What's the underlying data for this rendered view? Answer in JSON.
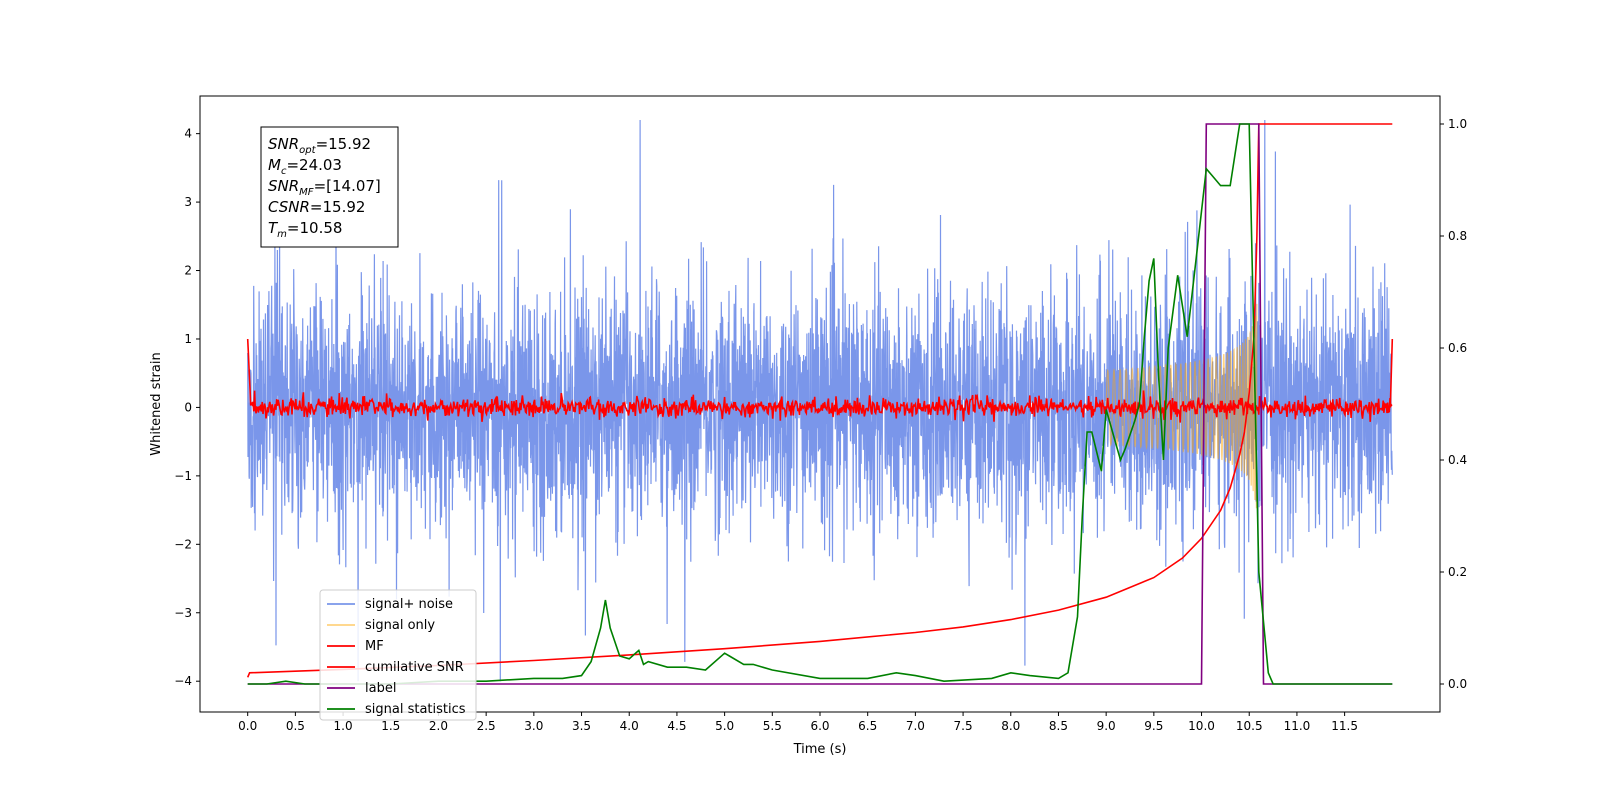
{
  "chart_data": {
    "type": "line",
    "xlabel": "Time (s)",
    "ylabel": "Whitened strain",
    "xlim": [
      -0.5,
      12.5
    ],
    "ylim": [
      -4.45,
      4.55
    ],
    "y2lim": [
      -0.05,
      1.05
    ],
    "x_ticks": [
      0.0,
      0.5,
      1.0,
      1.5,
      2.0,
      2.5,
      3.0,
      3.5,
      4.0,
      4.5,
      5.0,
      5.5,
      6.0,
      6.5,
      7.0,
      7.5,
      8.0,
      8.5,
      9.0,
      9.5,
      10.0,
      10.5,
      11.0,
      11.5
    ],
    "x_tick_labels": [
      "0.0",
      "0.5",
      "1.0",
      "1.5",
      "2.0",
      "2.5",
      "3.0",
      "3.5",
      "4.0",
      "4.5",
      "5.0",
      "5.5",
      "6.0",
      "6.5",
      "7.0",
      "7.5",
      "8.0",
      "8.5",
      "9.0",
      "9.5",
      "10.0",
      "10.5",
      "11.0",
      "11.5"
    ],
    "y_ticks": [
      4,
      3,
      2,
      1,
      0,
      -1,
      -2,
      -3,
      -4
    ],
    "y_tick_labels": [
      "4",
      "3",
      "2",
      "1",
      "0",
      "−1",
      "−2",
      "−3",
      "−4"
    ],
    "y2_ticks": [
      1.0,
      0.8,
      0.6,
      0.4,
      0.2,
      0.0
    ],
    "y2_tick_labels": [
      "1.0",
      "0.8",
      "0.6",
      "0.4",
      "0.2",
      "0.0"
    ],
    "grid": false,
    "legend_position": "lower-left",
    "annotation": {
      "lines": [
        {
          "base": "SNR",
          "sub": "opt",
          "rest": "=15.92"
        },
        {
          "base": "M",
          "sub": "c",
          "rest": "=24.03"
        },
        {
          "base": "SNR",
          "sub": "MF",
          "rest": "=[14.07]"
        },
        {
          "base": "CSNR",
          "sub": "",
          "rest": "=15.92"
        },
        {
          "base": "T",
          "sub": "m",
          "rest": "=10.58"
        }
      ]
    },
    "series": [
      {
        "name": "signal+ noise",
        "color": "#4169e1",
        "opacity": 0.7,
        "axis": "left",
        "description_only": "noise band",
        "x_range": [
          0.0,
          12.0
        ],
        "amplitude": 0.85,
        "seed": 7
      },
      {
        "name": "signal only",
        "color": "#ffa500",
        "opacity": 0.5,
        "axis": "left",
        "x_range": [
          9.0,
          10.6
        ],
        "peak_time": 10.58,
        "peak_amplitude": 1.8
      },
      {
        "name": "MF",
        "color": "#ff0000",
        "axis": "left",
        "x_range": [
          0.0,
          12.0
        ],
        "level": 0.0,
        "jitter": 0.07
      },
      {
        "name": "cumilative SNR",
        "color": "#ff0000",
        "axis": "right",
        "x": [
          0.0,
          0.02,
          1.0,
          2.0,
          3.0,
          4.0,
          5.0,
          6.0,
          7.0,
          7.5,
          8.0,
          8.5,
          9.0,
          9.5,
          9.8,
          10.0,
          10.2,
          10.3,
          10.4,
          10.45,
          10.5,
          10.55,
          10.58,
          10.6,
          12.0
        ],
        "y": [
          0.012,
          0.02,
          0.026,
          0.033,
          0.042,
          0.052,
          0.063,
          0.076,
          0.092,
          0.102,
          0.115,
          0.132,
          0.155,
          0.19,
          0.225,
          0.26,
          0.31,
          0.35,
          0.41,
          0.45,
          0.52,
          0.62,
          0.8,
          1.0,
          1.0
        ]
      },
      {
        "name": "label",
        "color": "#800080",
        "axis": "right",
        "x": [
          0.0,
          10.0,
          10.05,
          10.6,
          10.65,
          12.0
        ],
        "y": [
          0.0,
          0.0,
          1.0,
          1.0,
          0.0,
          0.0
        ]
      },
      {
        "name": "signal statistics",
        "color": "#008000",
        "axis": "right",
        "x": [
          0.0,
          0.2,
          0.4,
          0.6,
          1.0,
          1.5,
          2.0,
          2.5,
          3.0,
          3.3,
          3.5,
          3.6,
          3.7,
          3.75,
          3.8,
          3.9,
          4.0,
          4.1,
          4.15,
          4.2,
          4.4,
          4.6,
          4.8,
          5.0,
          5.05,
          5.2,
          5.3,
          5.5,
          6.0,
          6.5,
          6.8,
          7.0,
          7.3,
          7.8,
          8.0,
          8.2,
          8.5,
          8.6,
          8.7,
          8.75,
          8.8,
          8.85,
          8.95,
          9.0,
          9.1,
          9.15,
          9.2,
          9.3,
          9.35,
          9.4,
          9.45,
          9.5,
          9.55,
          9.6,
          9.65,
          9.75,
          9.85,
          9.95,
          10.05,
          10.1,
          10.2,
          10.3,
          10.4,
          10.5,
          10.55,
          10.6,
          10.7,
          10.75,
          12.0
        ],
        "y": [
          0.0,
          0.0,
          0.005,
          0.0,
          0.0,
          0.0,
          0.005,
          0.005,
          0.01,
          0.01,
          0.015,
          0.04,
          0.1,
          0.15,
          0.1,
          0.05,
          0.045,
          0.06,
          0.035,
          0.04,
          0.03,
          0.03,
          0.025,
          0.055,
          0.05,
          0.035,
          0.035,
          0.025,
          0.01,
          0.01,
          0.02,
          0.015,
          0.005,
          0.01,
          0.02,
          0.015,
          0.01,
          0.02,
          0.12,
          0.3,
          0.45,
          0.45,
          0.38,
          0.49,
          0.43,
          0.4,
          0.42,
          0.47,
          0.5,
          0.62,
          0.72,
          0.76,
          0.55,
          0.4,
          0.6,
          0.73,
          0.62,
          0.77,
          0.92,
          0.91,
          0.89,
          0.89,
          1.0,
          1.0,
          0.6,
          0.2,
          0.02,
          0.0,
          0.0
        ]
      }
    ]
  }
}
